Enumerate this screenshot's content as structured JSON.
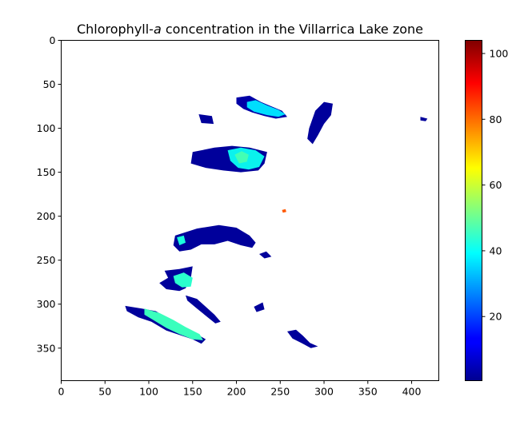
{
  "chart_data": {
    "type": "heatmap",
    "title": "Chlorophyll-a concentration in the Villarrica Lake zone",
    "title_parts": {
      "before": "Chlorophyll-",
      "italic": "a",
      "after": " concentration in the Villarrica Lake zone"
    },
    "xlabel": "",
    "ylabel": "",
    "xlim": [
      0,
      431
    ],
    "ylim": [
      387,
      0
    ],
    "xticks": [
      0,
      50,
      100,
      150,
      200,
      250,
      300,
      350,
      400
    ],
    "yticks": [
      0,
      50,
      100,
      150,
      200,
      250,
      300,
      350
    ],
    "grid": false,
    "colormap": "jet",
    "colorbar": {
      "min": 0.5,
      "max": 104,
      "ticks": [
        20,
        40,
        60,
        80,
        100
      ]
    },
    "regions": [
      {
        "points": [
          [
            200,
            65
          ],
          [
            215,
            63
          ],
          [
            228,
            70
          ],
          [
            240,
            75
          ],
          [
            252,
            80
          ],
          [
            258,
            87
          ],
          [
            245,
            89
          ],
          [
            232,
            86
          ],
          [
            218,
            82
          ],
          [
            208,
            78
          ],
          [
            200,
            72
          ]
        ],
        "value": 4
      },
      {
        "points": [
          [
            212,
            70
          ],
          [
            222,
            68
          ],
          [
            235,
            74
          ],
          [
            248,
            79
          ],
          [
            256,
            84
          ],
          [
            248,
            87
          ],
          [
            235,
            85
          ],
          [
            220,
            81
          ],
          [
            212,
            76
          ]
        ],
        "value": 36
      },
      {
        "points": [
          [
            157,
            84
          ],
          [
            172,
            86
          ],
          [
            174,
            95
          ],
          [
            160,
            94
          ]
        ],
        "value": 3
      },
      {
        "points": [
          [
            283,
            100
          ],
          [
            290,
            80
          ],
          [
            300,
            70
          ],
          [
            310,
            72
          ],
          [
            308,
            85
          ],
          [
            300,
            95
          ],
          [
            293,
            108
          ],
          [
            287,
            118
          ],
          [
            281,
            112
          ]
        ],
        "value": 3
      },
      {
        "points": [
          [
            410,
            87
          ],
          [
            418,
            89
          ],
          [
            416,
            92
          ],
          [
            410,
            91
          ]
        ],
        "value": 3
      },
      {
        "points": [
          [
            150,
            127
          ],
          [
            175,
            122
          ],
          [
            195,
            120
          ],
          [
            215,
            122
          ],
          [
            235,
            127
          ],
          [
            232,
            140
          ],
          [
            225,
            148
          ],
          [
            205,
            150
          ],
          [
            185,
            148
          ],
          [
            165,
            145
          ],
          [
            148,
            140
          ]
        ],
        "value": 3
      },
      {
        "points": [
          [
            190,
            125
          ],
          [
            205,
            122
          ],
          [
            222,
            125
          ],
          [
            232,
            132
          ],
          [
            226,
            144
          ],
          [
            214,
            147
          ],
          [
            202,
            145
          ],
          [
            193,
            137
          ]
        ],
        "value": 38
      },
      {
        "points": [
          [
            198,
            130
          ],
          [
            206,
            126
          ],
          [
            214,
            130
          ],
          [
            212,
            138
          ],
          [
            203,
            140
          ]
        ],
        "value": 45
      },
      {
        "points": [
          [
            252,
            193
          ],
          [
            256,
            192
          ],
          [
            257,
            195
          ],
          [
            253,
            196
          ]
        ],
        "value": 85
      },
      {
        "points": [
          [
            130,
            222
          ],
          [
            155,
            214
          ],
          [
            180,
            210
          ],
          [
            200,
            213
          ],
          [
            215,
            222
          ],
          [
            222,
            230
          ],
          [
            218,
            236
          ],
          [
            205,
            233
          ],
          [
            190,
            228
          ],
          [
            175,
            232
          ],
          [
            160,
            232
          ],
          [
            148,
            238
          ],
          [
            135,
            240
          ],
          [
            128,
            233
          ]
        ],
        "value": 3
      },
      {
        "points": [
          [
            132,
            224
          ],
          [
            140,
            222
          ],
          [
            142,
            230
          ],
          [
            135,
            233
          ]
        ],
        "value": 40
      },
      {
        "points": [
          [
            226,
            243
          ],
          [
            234,
            240
          ],
          [
            240,
            246
          ],
          [
            232,
            248
          ]
        ],
        "value": 3
      },
      {
        "points": [
          [
            118,
            262
          ],
          [
            135,
            260
          ],
          [
            150,
            257
          ],
          [
            148,
            270
          ],
          [
            142,
            282
          ],
          [
            135,
            285
          ],
          [
            120,
            283
          ],
          [
            112,
            276
          ],
          [
            122,
            270
          ]
        ],
        "value": 3
      },
      {
        "points": [
          [
            128,
            268
          ],
          [
            140,
            264
          ],
          [
            150,
            270
          ],
          [
            148,
            280
          ],
          [
            138,
            281
          ],
          [
            130,
            276
          ]
        ],
        "value": 42
      },
      {
        "points": [
          [
            142,
            290
          ],
          [
            155,
            294
          ],
          [
            165,
            303
          ],
          [
            175,
            312
          ],
          [
            182,
            320
          ],
          [
            176,
            322
          ],
          [
            166,
            314
          ],
          [
            155,
            305
          ],
          [
            144,
            296
          ]
        ],
        "value": 3
      },
      {
        "points": [
          [
            73,
            302
          ],
          [
            92,
            305
          ],
          [
            108,
            308
          ],
          [
            125,
            318
          ],
          [
            140,
            326
          ],
          [
            155,
            334
          ],
          [
            165,
            340
          ],
          [
            160,
            345
          ],
          [
            150,
            340
          ],
          [
            135,
            335
          ],
          [
            120,
            330
          ],
          [
            103,
            320
          ],
          [
            88,
            315
          ],
          [
            75,
            308
          ]
        ],
        "value": 3
      },
      {
        "points": [
          [
            95,
            305
          ],
          [
            112,
            310
          ],
          [
            128,
            318
          ],
          [
            142,
            326
          ],
          [
            158,
            334
          ],
          [
            162,
            341
          ],
          [
            150,
            340
          ],
          [
            135,
            334
          ],
          [
            120,
            327
          ],
          [
            105,
            318
          ],
          [
            95,
            312
          ]
        ],
        "value": 44
      },
      {
        "points": [
          [
            220,
            303
          ],
          [
            230,
            298
          ],
          [
            232,
            306
          ],
          [
            223,
            309
          ]
        ],
        "value": 3
      },
      {
        "points": [
          [
            258,
            331
          ],
          [
            268,
            329
          ],
          [
            276,
            336
          ],
          [
            284,
            344
          ],
          [
            293,
            348
          ],
          [
            285,
            350
          ],
          [
            274,
            344
          ],
          [
            264,
            339
          ]
        ],
        "value": 3
      }
    ]
  }
}
